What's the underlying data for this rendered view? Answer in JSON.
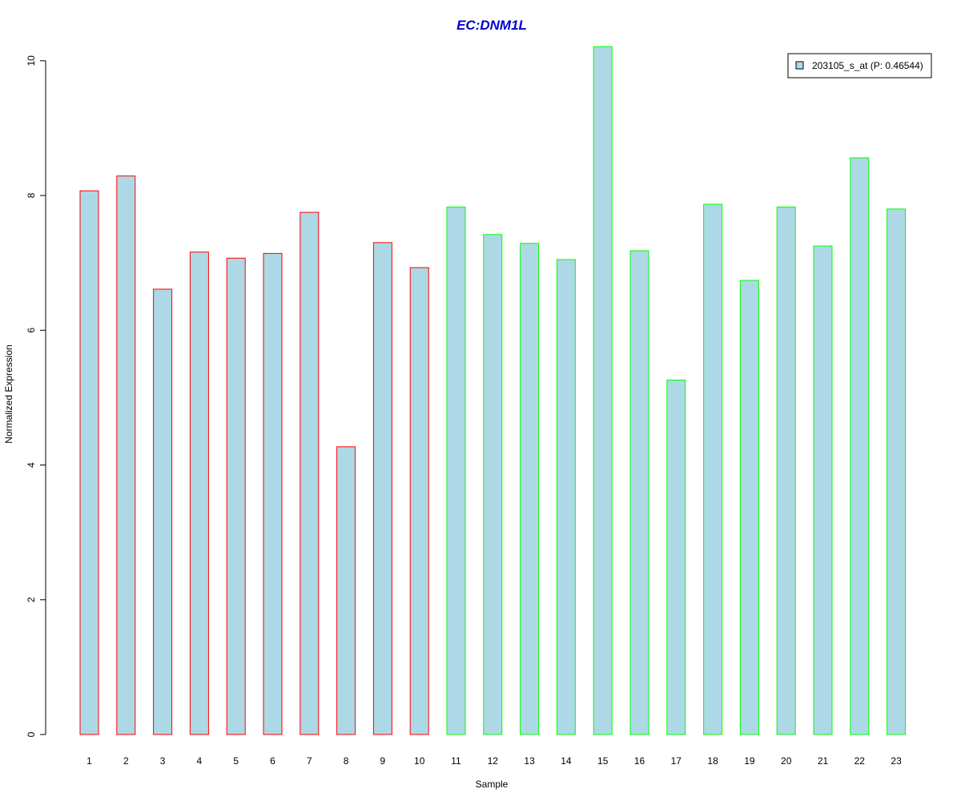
{
  "chart_data": {
    "type": "bar",
    "title": "EC:DNM1L",
    "xlabel": "Sample",
    "ylabel": "Normalized Expression",
    "ylim": [
      0,
      10.2
    ],
    "yticks": [
      "0",
      "2",
      "4",
      "6",
      "8",
      "10"
    ],
    "categories": [
      "1",
      "2",
      "3",
      "4",
      "5",
      "6",
      "7",
      "8",
      "9",
      "10",
      "11",
      "12",
      "13",
      "14",
      "15",
      "16",
      "17",
      "18",
      "19",
      "20",
      "21",
      "22",
      "23"
    ],
    "values": [
      8.07,
      8.29,
      6.61,
      7.16,
      7.07,
      7.14,
      7.75,
      4.27,
      7.3,
      6.93,
      7.83,
      7.42,
      7.29,
      7.05,
      10.21,
      7.18,
      5.26,
      7.87,
      6.74,
      7.83,
      7.25,
      8.56,
      7.8
    ],
    "groups": [
      "a",
      "a",
      "a",
      "a",
      "a",
      "a",
      "a",
      "a",
      "a",
      "a",
      "b",
      "b",
      "b",
      "b",
      "b",
      "b",
      "b",
      "b",
      "b",
      "b",
      "b",
      "b",
      "b"
    ],
    "legend": {
      "entries": [
        {
          "label": "203105_s_at (P: 0.46544)"
        }
      ],
      "placement": "top-right"
    },
    "colors": {
      "title": "#0000CD",
      "bar_fill": "#ADD8E6",
      "group_a_border": "#FF0000",
      "group_b_border": "#00FF00",
      "axis": "#000000"
    },
    "grid": false
  }
}
